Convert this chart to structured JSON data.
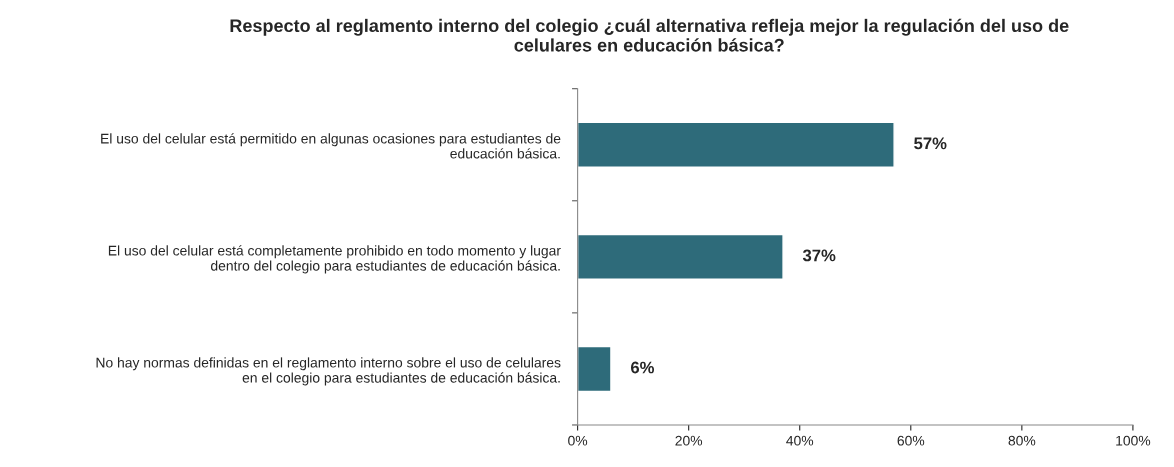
{
  "chart_data": {
    "type": "bar",
    "orientation": "horizontal",
    "title": "Respecto al reglamento interno del colegio ¿cuál alternativa refleja mejor la regulación del uso de\ncelulares en educación básica?",
    "categories": [
      "El uso del celular está permitido en algunas ocasiones para estudiantes de\neducación básica.",
      "El uso del celular está completamente prohibido en todo momento y lugar\ndentro del colegio para estudiantes de educación básica.",
      "No hay normas definidas en el reglamento interno sobre el uso de celulares\nen el colegio para estudiantes de educación básica."
    ],
    "values": [
      57,
      37,
      6
    ],
    "value_labels": [
      "57%",
      "37%",
      "6%"
    ],
    "color": "#2e6b7a",
    "xlim": [
      0,
      100
    ],
    "xticks": [
      {
        "value": 0,
        "label": "0%"
      },
      {
        "value": 20,
        "label": "20%"
      },
      {
        "value": 40,
        "label": "40%"
      },
      {
        "value": 60,
        "label": "60%"
      },
      {
        "value": 80,
        "label": "80%"
      },
      {
        "value": 100,
        "label": "100%"
      }
    ],
    "grid": false,
    "legend": false
  }
}
